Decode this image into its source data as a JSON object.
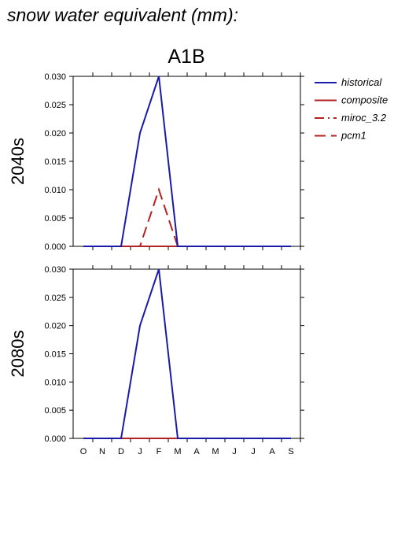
{
  "page": {
    "title": "snow water equivalent (mm):",
    "scenario": "A1B"
  },
  "legend": [
    {
      "name": "historical",
      "color": "#1a1aaa",
      "dash": "solid"
    },
    {
      "name": "composite",
      "color": "#b22222",
      "dash": "solid"
    },
    {
      "name": "miroc_3.2",
      "color": "#b22222",
      "dash": "dashdot"
    },
    {
      "name": "pcm1",
      "color": "#b22222",
      "dash": "dashed"
    }
  ],
  "chart_data": [
    {
      "type": "line",
      "title": "2040s",
      "categories": [
        "O",
        "N",
        "D",
        "J",
        "F",
        "M",
        "A",
        "M",
        "J",
        "J",
        "A",
        "S"
      ],
      "ylim": [
        0,
        0.03
      ],
      "yticks": [
        "0.000",
        "0.005",
        "0.010",
        "0.015",
        "0.020",
        "0.025",
        "0.030"
      ],
      "grid": false,
      "series": [
        {
          "name": "historical",
          "values": [
            0,
            0,
            0,
            0.02,
            0.03,
            0,
            0,
            0,
            0,
            0,
            0,
            0
          ]
        },
        {
          "name": "composite",
          "values": [
            0,
            0,
            0,
            0,
            0,
            0,
            0,
            0,
            0,
            0,
            0,
            0
          ]
        },
        {
          "name": "miroc_3.2",
          "values": [
            0,
            0,
            0,
            0,
            0,
            0,
            0,
            0,
            0,
            0,
            0,
            0
          ]
        },
        {
          "name": "pcm1",
          "values": [
            0,
            0,
            0,
            0,
            0.01,
            0,
            0,
            0,
            0,
            0,
            0,
            0
          ]
        }
      ]
    },
    {
      "type": "line",
      "title": "2080s",
      "categories": [
        "O",
        "N",
        "D",
        "J",
        "F",
        "M",
        "A",
        "M",
        "J",
        "J",
        "A",
        "S"
      ],
      "ylim": [
        0,
        0.03
      ],
      "yticks": [
        "0.000",
        "0.005",
        "0.010",
        "0.015",
        "0.020",
        "0.025",
        "0.030"
      ],
      "grid": false,
      "series": [
        {
          "name": "historical",
          "values": [
            0,
            0,
            0,
            0.02,
            0.03,
            0,
            0,
            0,
            0,
            0,
            0,
            0
          ]
        },
        {
          "name": "composite",
          "values": [
            0,
            0,
            0,
            0,
            0,
            0,
            0,
            0,
            0,
            0,
            0,
            0
          ]
        },
        {
          "name": "miroc_3.2",
          "values": [
            0,
            0,
            0,
            0,
            0,
            0,
            0,
            0,
            0,
            0,
            0,
            0
          ]
        },
        {
          "name": "pcm1",
          "values": [
            0,
            0,
            0,
            0,
            0,
            0,
            0,
            0,
            0,
            0,
            0,
            0
          ]
        }
      ]
    }
  ]
}
